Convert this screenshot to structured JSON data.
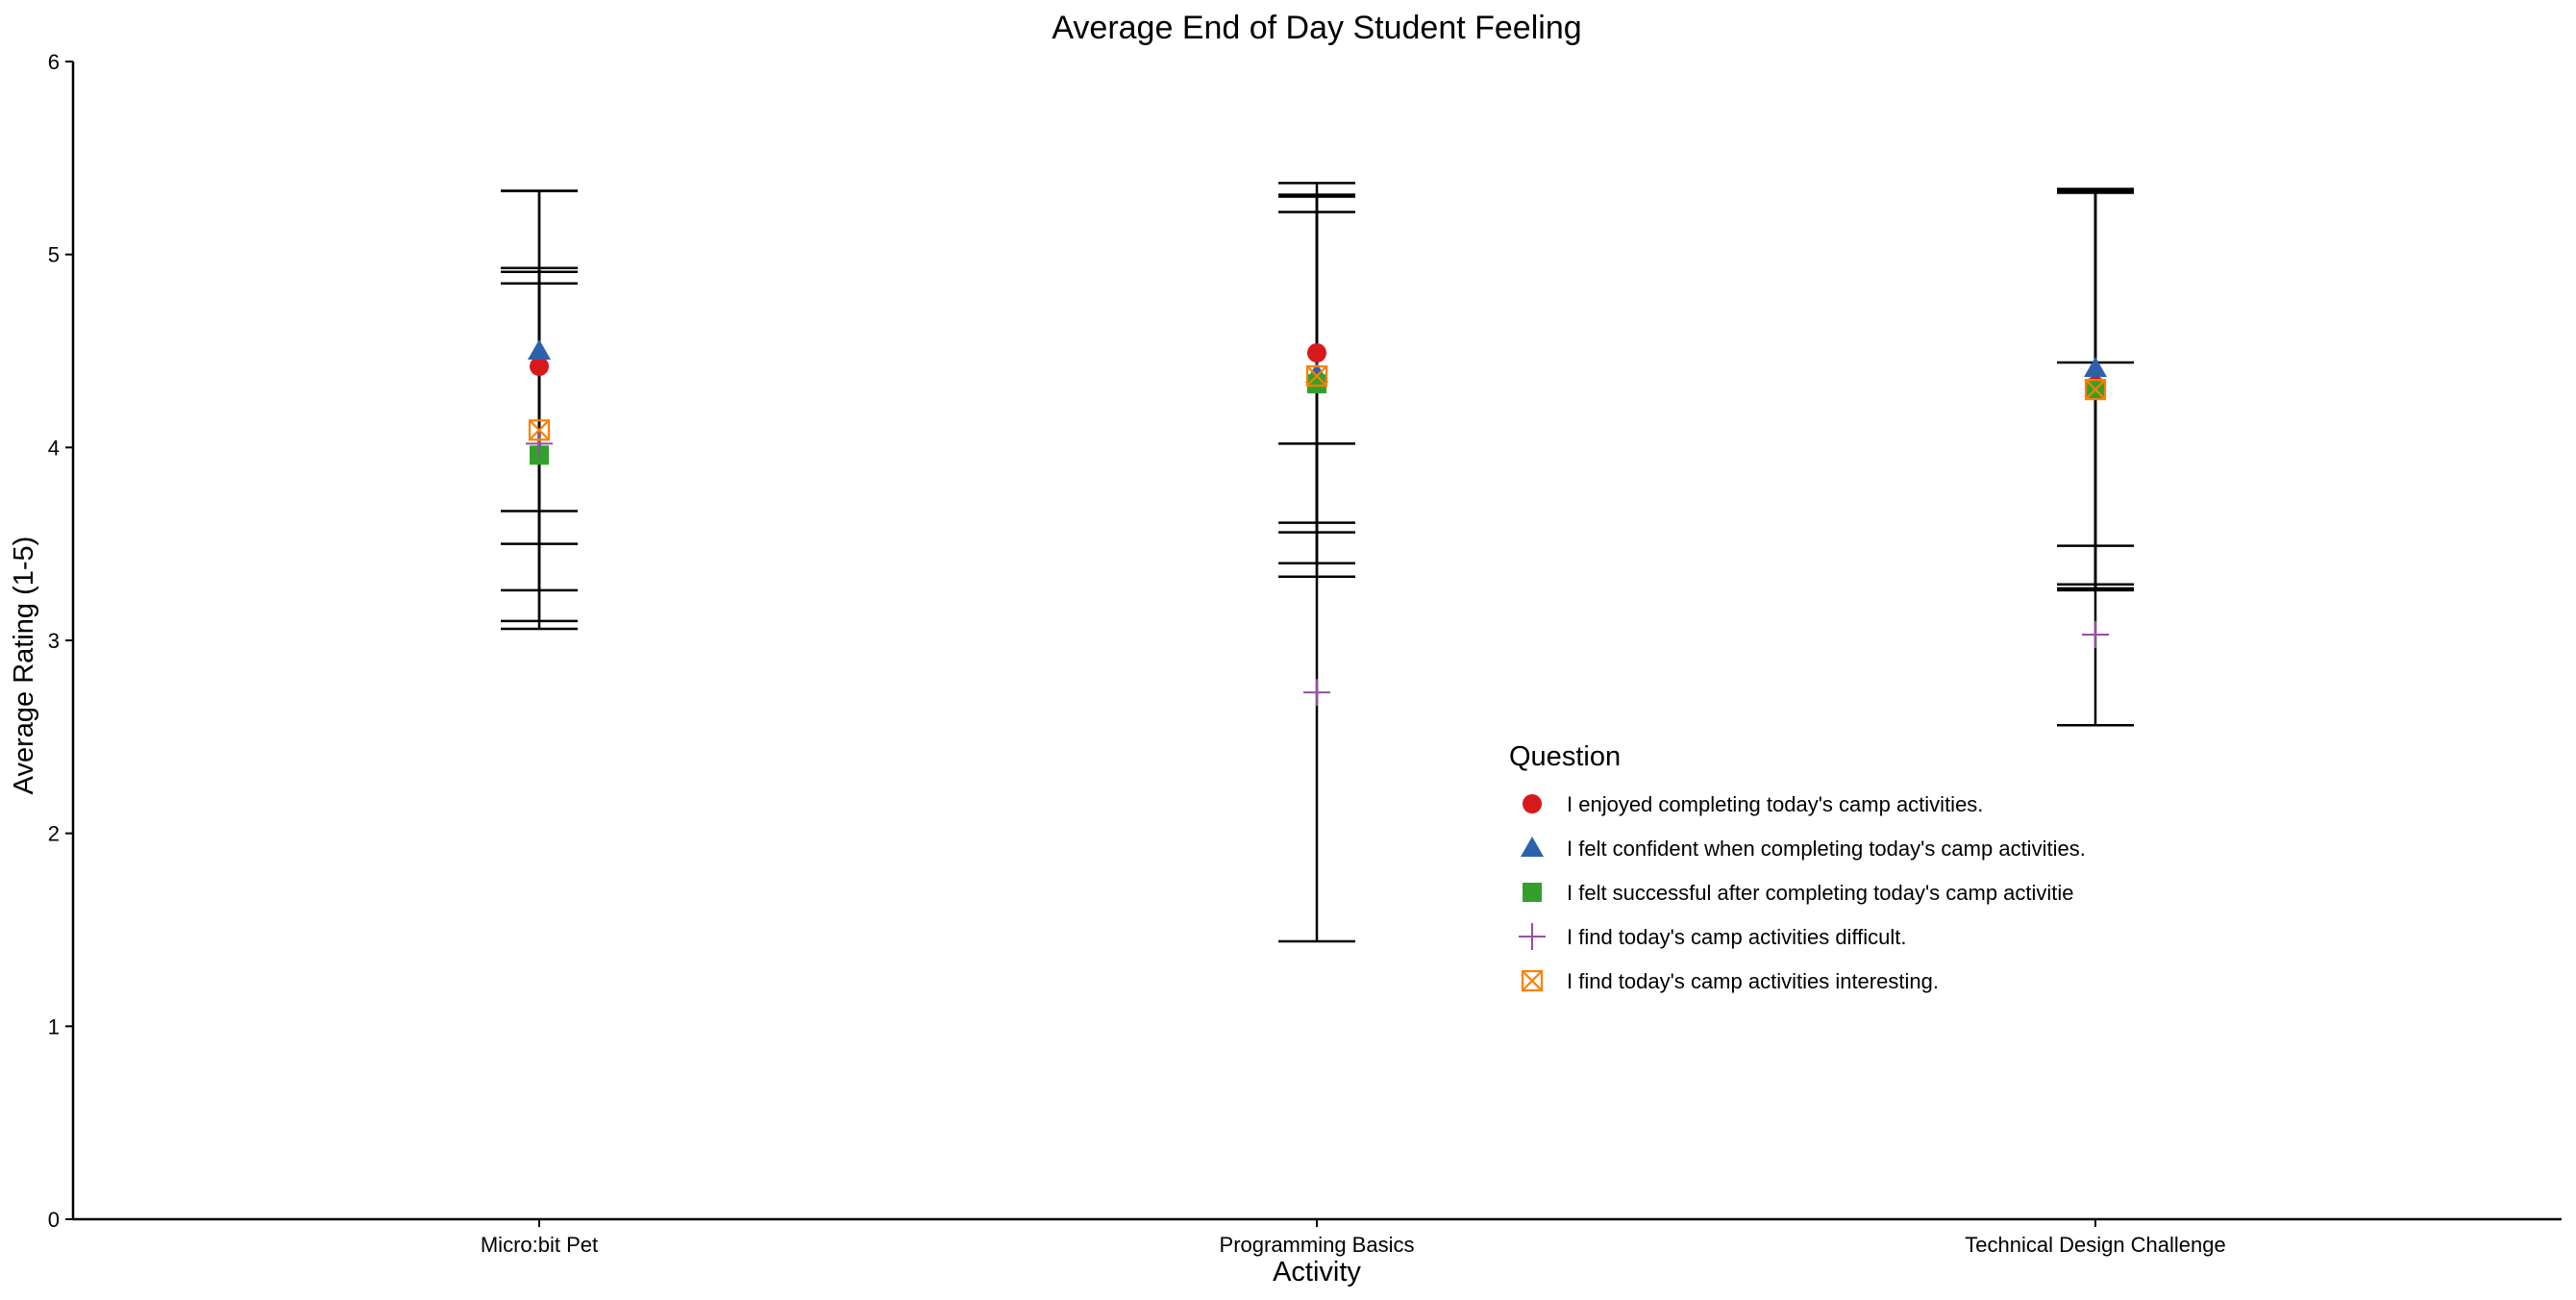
{
  "chart_data": {
    "type": "scatter",
    "title": "Average End of Day Student Feeling",
    "xlabel": "Activity",
    "ylabel": "Average Rating (1-5)",
    "ylim": [
      0,
      6
    ],
    "yticks": [
      0,
      1,
      2,
      3,
      4,
      5,
      6
    ],
    "grid": false,
    "categories": [
      "Micro:bit Pet",
      "Programming Basics",
      "Technical Design Challenge"
    ],
    "legend": {
      "title": "Question",
      "placement": "right-center, inside plot"
    },
    "series": [
      {
        "name": "I enjoyed completing today's camp activities.",
        "marker": "circle",
        "color": "#d7191c",
        "values": [
          4.42,
          4.49,
          4.32
        ],
        "error_low": [
          3.5,
          3.61,
          3.29
        ],
        "error_high": [
          5.33,
          5.37,
          5.34
        ]
      },
      {
        "name": "I felt confident when completing today's camp activities.",
        "marker": "triangle",
        "color": "#2c62ac",
        "values": [
          4.5,
          4.38,
          4.41
        ],
        "error_low": [
          3.67,
          3.56,
          3.49
        ],
        "error_high": [
          5.33,
          5.22,
          5.32
        ]
      },
      {
        "name": "I felt successful after completing today's camp activitie",
        "marker": "square",
        "color": "#33a02c",
        "values": [
          3.96,
          4.33,
          4.3
        ],
        "error_low": [
          3.06,
          3.33,
          3.26
        ],
        "error_high": [
          4.85,
          5.31,
          5.33
        ]
      },
      {
        "name": "I find today's camp activities difficult.",
        "marker": "plus",
        "color": "#984ea3",
        "values": [
          4.02,
          2.73,
          3.03
        ],
        "error_low": [
          3.1,
          1.44,
          2.56
        ],
        "error_high": [
          4.93,
          4.02,
          4.44
        ]
      },
      {
        "name": "I find today's camp activities interesting.",
        "marker": "square-x",
        "color": "#ff7f00",
        "values": [
          4.09,
          4.37,
          4.3
        ],
        "error_low": [
          3.26,
          3.4,
          3.27
        ],
        "error_high": [
          4.91,
          5.3,
          5.33
        ]
      }
    ]
  }
}
